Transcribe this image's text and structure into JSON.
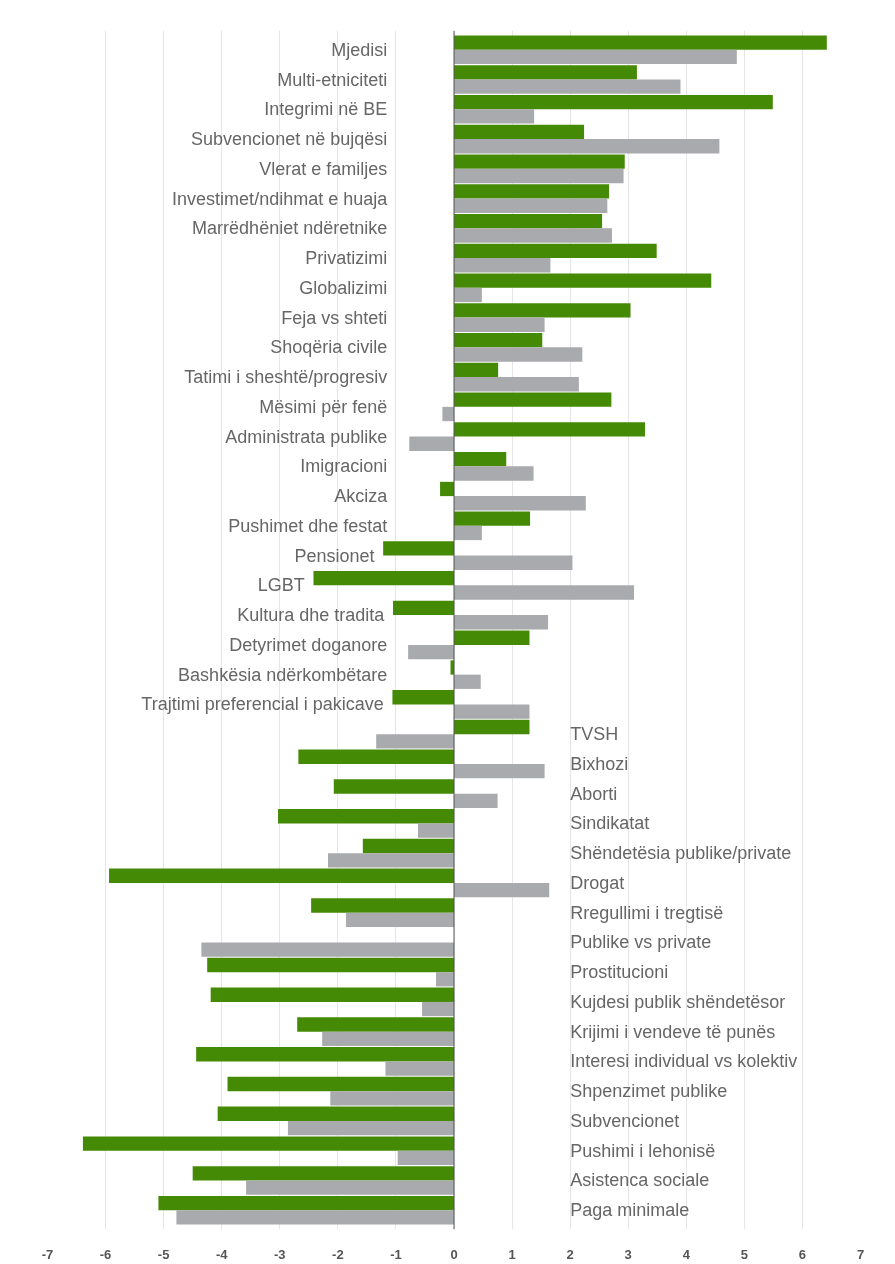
{
  "chart_data": {
    "type": "bar",
    "orientation": "horizontal",
    "categories": [
      "Mjedisi",
      "Multi-etniciteti",
      "Integrimi në BE",
      "Subvencionet në bujqësi",
      "Vlerat e familjes",
      "Investimet/ndihmat e huaja",
      "Marrëdhëniet ndëretnike",
      "Privatizimi",
      "Globalizimi",
      "Feja vs shteti",
      "Shoqëria civile",
      "Tatimi i sheshtë/progresiv",
      "Mësimi për fenë",
      "Administrata publike",
      "Imigracioni",
      "Akciza",
      "Pushimet dhe festat",
      "Pensionet",
      "LGBT",
      "Kultura dhe tradita",
      "Detyrimet doganore",
      "Bashkësia ndërkombëtare",
      "Trajtimi preferencial i pakicave",
      "TVSH",
      "Bixhozi",
      "Aborti",
      "Sindikatat",
      "Shëndetësia publike/private",
      "Drogat",
      "Rregullimi i tregtisë",
      "Publike vs private",
      "Prostitucioni",
      "Kujdesi publik shëndetësor",
      "Krijimi i vendeve të punës",
      "Interesi individual vs kolektiv",
      "Shpenzimet publike",
      "Subvencionet",
      "Pushimi i lehonisë",
      "Asistenca sociale",
      "Paga minimale"
    ],
    "series": [
      {
        "color": "#448a05",
        "values": [
          6.42,
          3.15,
          5.49,
          2.24,
          2.94,
          2.67,
          2.55,
          3.49,
          4.43,
          3.04,
          1.52,
          0.76,
          2.71,
          3.29,
          0.9,
          -0.24,
          1.31,
          -1.22,
          -2.42,
          -1.05,
          1.3,
          -0.06,
          -1.06,
          1.3,
          -2.68,
          -2.07,
          -3.03,
          -1.57,
          -5.94,
          -2.46,
          null,
          -4.25,
          -4.19,
          -2.7,
          -4.44,
          -3.9,
          -4.07,
          -6.39,
          -4.5,
          -5.09
        ]
      },
      {
        "color": "#a9aaad",
        "values": [
          4.87,
          3.9,
          1.38,
          4.57,
          2.92,
          2.64,
          2.72,
          1.66,
          0.48,
          1.56,
          2.21,
          2.15,
          -0.2,
          -0.77,
          1.37,
          2.27,
          0.48,
          2.04,
          3.1,
          1.62,
          -0.79,
          0.46,
          1.3,
          -1.34,
          1.56,
          0.75,
          -0.62,
          -2.17,
          1.64,
          -1.86,
          -4.35,
          -0.31,
          -0.55,
          -2.27,
          -1.18,
          -2.13,
          -2.86,
          -0.97,
          -3.58,
          -4.78
        ]
      }
    ],
    "xlim": [
      -7,
      7
    ],
    "xticks": [
      -7,
      -6,
      -5,
      -4,
      -3,
      -2,
      -1,
      0,
      1,
      2,
      3,
      4,
      5,
      6,
      7
    ],
    "grid": "x"
  }
}
